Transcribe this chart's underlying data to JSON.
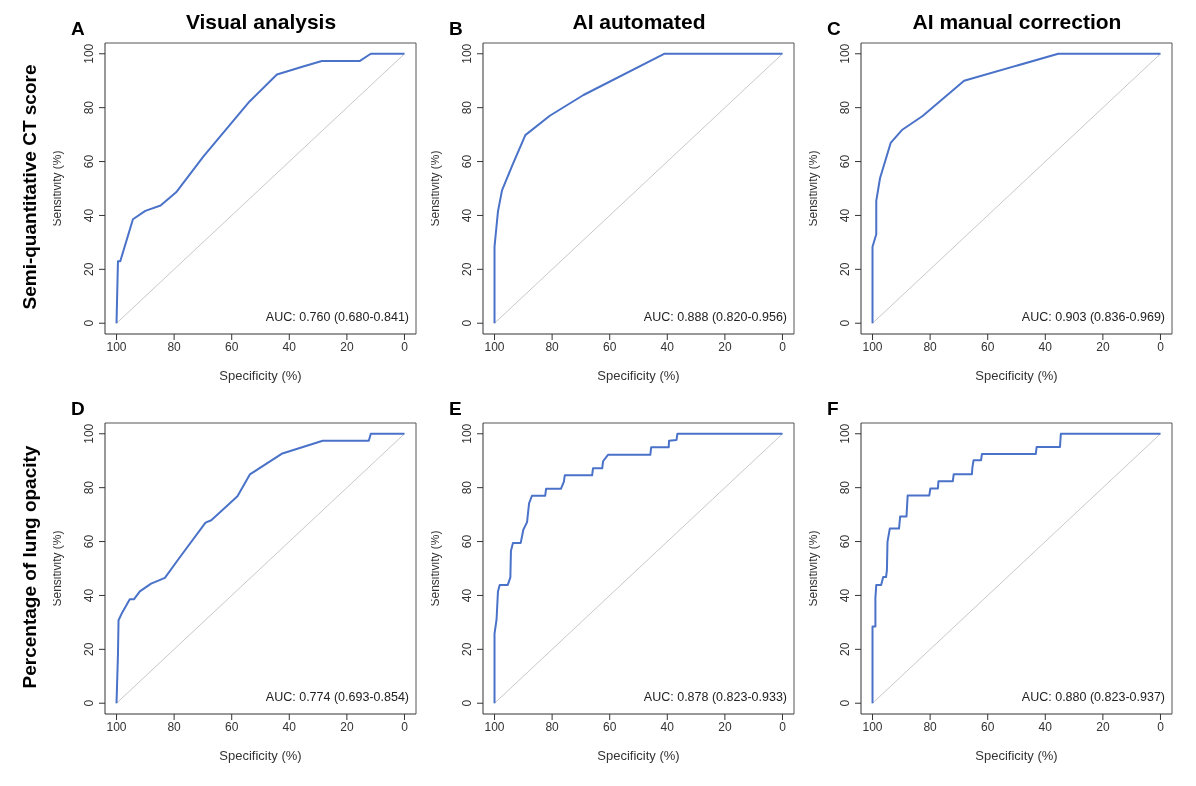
{
  "chart_data": [
    {
      "type": "line",
      "title": "Visual analysis",
      "xlabel": "Specificity (%)",
      "ylabel": "Sensitivity (%)",
      "xlim": [
        104,
        -4
      ],
      "ylim": [
        -4,
        104
      ],
      "xticks": [
        100,
        80,
        60,
        40,
        20,
        0
      ],
      "yticks": [
        0,
        20,
        40,
        60,
        80,
        100
      ],
      "marker": "none",
      "annotations": [
        "A",
        "AUC: 0.760 (0.680-0.841)",
        "Semi-quantitative CT score"
      ],
      "series": [
        {
          "color": "#c8c8c8",
          "x": [
            100,
            0
          ],
          "values": [
            0,
            100
          ]
        },
        {
          "color": "#4a72c8",
          "x": [
            100,
            99.5,
            98.7,
            94.3,
            90,
            84.7,
            79.3,
            69.8,
            53.8,
            44.3,
            35.2,
            28.7,
            15.6,
            11.7,
            0
          ],
          "values": [
            0,
            23,
            23,
            38.6,
            41.7,
            43.7,
            48.6,
            61.9,
            82.3,
            92.3,
            95.3,
            97.3,
            97.3,
            100,
            100
          ]
        }
      ]
    },
    {
      "type": "line",
      "title": "AI automated",
      "xlabel": "Specificity (%)",
      "ylabel": "Sensitivity (%)",
      "xlim": [
        104,
        -4
      ],
      "ylim": [
        -4,
        104
      ],
      "xticks": [
        100,
        80,
        60,
        40,
        20,
        0
      ],
      "yticks": [
        0,
        20,
        40,
        60,
        80,
        100
      ],
      "marker": "none",
      "annotations": [
        "B",
        "AUC: 0.888 (0.820-0.956)"
      ],
      "series": [
        {
          "color": "#c8c8c8",
          "x": [
            100,
            0
          ],
          "values": [
            0,
            100
          ]
        },
        {
          "color": "#4a72c8",
          "x": [
            100,
            100,
            98.8,
            97.4,
            93.9,
            89.3,
            80.8,
            69.1,
            41.1,
            0
          ],
          "values": [
            0,
            28.4,
            41.5,
            49.3,
            58.4,
            69.8,
            77,
            84.7,
            100,
            100
          ]
        }
      ]
    },
    {
      "type": "line",
      "title": "AI manual correction",
      "xlabel": "Specificity (%)",
      "ylabel": "Sensitivity (%)",
      "xlim": [
        104,
        -4
      ],
      "ylim": [
        -4,
        104
      ],
      "xticks": [
        100,
        80,
        60,
        40,
        20,
        0
      ],
      "yticks": [
        0,
        20,
        40,
        60,
        80,
        100
      ],
      "marker": "none",
      "annotations": [
        "C",
        "AUC: 0.903 (0.836-0.969)"
      ],
      "series": [
        {
          "color": "#c8c8c8",
          "x": [
            100,
            0
          ],
          "values": [
            0,
            100
          ]
        },
        {
          "color": "#4a72c8",
          "x": [
            100,
            100,
            98.7,
            98.7,
            97.4,
            93.7,
            89.8,
            82.6,
            68.2,
            35.5,
            0
          ],
          "values": [
            0,
            28.4,
            33,
            45.4,
            53.8,
            66.9,
            71.7,
            76.9,
            90,
            100,
            100
          ]
        }
      ]
    },
    {
      "type": "line",
      "xlabel": "Specificity (%)",
      "ylabel": "Sensitivity (%)",
      "xlim": [
        104,
        -4
      ],
      "ylim": [
        -4,
        104
      ],
      "xticks": [
        100,
        80,
        60,
        40,
        20,
        0
      ],
      "yticks": [
        0,
        20,
        40,
        60,
        80,
        100
      ],
      "marker": "none",
      "annotations": [
        "D",
        "AUC: 0.774 (0.693-0.854)",
        "Percentage of lung opacity"
      ],
      "series": [
        {
          "color": "#c8c8c8",
          "x": [
            100,
            0
          ],
          "values": [
            0,
            100
          ]
        },
        {
          "color": "#4a72c8",
          "x": [
            100,
            99.5,
            99.3,
            98,
            95.4,
            93.9,
            91.9,
            88,
            83.2,
            78.2,
            69.1,
            67.1,
            58,
            53.7,
            42.4,
            28.4,
            12.4,
            11.7,
            0
          ],
          "values": [
            0,
            18,
            30.8,
            33.7,
            38.6,
            38.6,
            41.5,
            44.4,
            46.5,
            53.9,
            67,
            67.9,
            76.8,
            84.9,
            92.7,
            97.4,
            97.4,
            100,
            100
          ]
        }
      ]
    },
    {
      "type": "line",
      "xlabel": "Specificity (%)",
      "ylabel": "Sensitivity (%)",
      "xlim": [
        104,
        -4
      ],
      "ylim": [
        -4,
        104
      ],
      "xticks": [
        100,
        80,
        60,
        40,
        20,
        0
      ],
      "yticks": [
        0,
        20,
        40,
        60,
        80,
        100
      ],
      "marker": "none",
      "annotations": [
        "E",
        "AUC: 0.878 (0.823-0.933)"
      ],
      "series": [
        {
          "color": "#c8c8c8",
          "x": [
            100,
            0
          ],
          "values": [
            0,
            100
          ]
        },
        {
          "color": "#4a72c8",
          "x": [
            100,
            100,
            99.3,
            98.8,
            98.2,
            95.4,
            94.5,
            94.3,
            93.6,
            90.9,
            90,
            88.7,
            88,
            87,
            82.4,
            82.1,
            76.9,
            75.9,
            75.6,
            66.1,
            65.8,
            62.6,
            62.3,
            60.6,
            45.9,
            45.6,
            39.5,
            39.4,
            36.8,
            36.5,
            0
          ],
          "values": [
            0,
            25.8,
            31,
            41.5,
            43.9,
            43.9,
            46.7,
            56.5,
            59.5,
            59.5,
            64.4,
            67.2,
            74.2,
            77,
            77,
            79.6,
            79.6,
            82.2,
            84.6,
            84.6,
            87.2,
            87.2,
            89.8,
            92.2,
            92.2,
            95,
            95,
            97.4,
            97.7,
            100,
            100
          ]
        }
      ]
    },
    {
      "type": "line",
      "xlabel": "Specificity (%)",
      "ylabel": "Sensitivity (%)",
      "xlim": [
        104,
        -4
      ],
      "ylim": [
        -4,
        104
      ],
      "xticks": [
        100,
        80,
        60,
        40,
        20,
        0
      ],
      "yticks": [
        0,
        20,
        40,
        60,
        80,
        100
      ],
      "marker": "none",
      "annotations": [
        "F",
        "AUC: 0.880 (0.823-0.937)"
      ],
      "series": [
        {
          "color": "#c8c8c8",
          "x": [
            100,
            0
          ],
          "values": [
            0,
            100
          ]
        },
        {
          "color": "#4a72c8",
          "x": [
            100,
            100,
            99,
            99,
            98.7,
            97,
            96.3,
            95.3,
            95,
            94.8,
            94,
            90.8,
            90.4,
            88.2,
            87.8,
            80.3,
            79.9,
            77.3,
            77.1,
            72.1,
            71.8,
            65.5,
            65.3,
            64.9,
            62.3,
            62,
            43.3,
            43,
            34.9,
            34.6,
            0
          ],
          "values": [
            0,
            28.5,
            28.5,
            39,
            43.9,
            43.9,
            46.8,
            46.8,
            49.4,
            59.9,
            64.8,
            64.8,
            69.3,
            69.3,
            77.1,
            77.1,
            79.7,
            79.7,
            82.4,
            82.4,
            85,
            85,
            87.6,
            90.2,
            90.2,
            92.5,
            92.5,
            95.1,
            95.1,
            100,
            100
          ]
        }
      ]
    }
  ]
}
